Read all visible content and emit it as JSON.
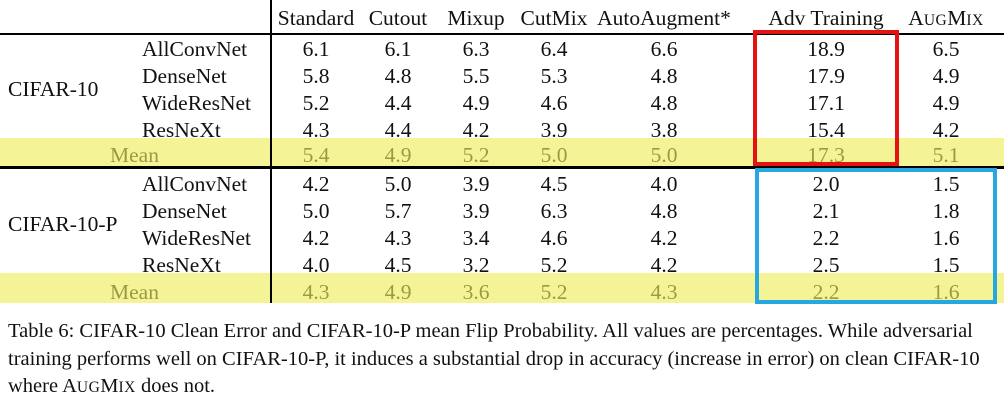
{
  "header": {
    "columns": [
      "Standard",
      "Cutout",
      "Mixup",
      "CutMix",
      "AutoAugment*",
      "Adv Training"
    ],
    "augmix": {
      "first": "A",
      "rest1": "UG",
      "mid": "M",
      "rest2": "IX"
    }
  },
  "groups": [
    {
      "label": "CIFAR-10",
      "rows": [
        {
          "model": "AllConvNet",
          "values": [
            "6.1",
            "6.1",
            "6.3",
            "6.4",
            "6.6",
            "18.9",
            "6.5"
          ]
        },
        {
          "model": "DenseNet",
          "values": [
            "5.8",
            "4.8",
            "5.5",
            "5.3",
            "4.8",
            "17.9",
            "4.9"
          ]
        },
        {
          "model": "WideResNet",
          "values": [
            "5.2",
            "4.4",
            "4.9",
            "4.6",
            "4.8",
            "17.1",
            "4.9"
          ]
        },
        {
          "model": "ResNeXt",
          "values": [
            "4.3",
            "4.4",
            "4.2",
            "3.9",
            "3.8",
            "15.4",
            "4.2"
          ]
        }
      ],
      "mean": {
        "label": "Mean",
        "values": [
          "5.4",
          "4.9",
          "5.2",
          "5.0",
          "5.0",
          "17.3",
          "5.1"
        ]
      }
    },
    {
      "label": "CIFAR-10-P",
      "rows": [
        {
          "model": "AllConvNet",
          "values": [
            "4.2",
            "5.0",
            "3.9",
            "4.5",
            "4.0",
            "2.0",
            "1.5"
          ]
        },
        {
          "model": "DenseNet",
          "values": [
            "5.0",
            "5.7",
            "3.9",
            "6.3",
            "4.8",
            "2.1",
            "1.8"
          ]
        },
        {
          "model": "WideResNet",
          "values": [
            "4.2",
            "4.3",
            "3.4",
            "4.6",
            "4.2",
            "2.2",
            "1.6"
          ]
        },
        {
          "model": "ResNeXt",
          "values": [
            "4.0",
            "4.5",
            "3.2",
            "5.2",
            "4.2",
            "2.5",
            "1.5"
          ]
        }
      ],
      "mean": {
        "label": "Mean",
        "values": [
          "4.3",
          "4.9",
          "3.6",
          "5.2",
          "4.3",
          "2.2",
          "1.6"
        ]
      }
    }
  ],
  "caption": {
    "part1": "Table 6: CIFAR-10 Clean Error and CIFAR-10-P mean Flip Probability. All values are percentages. While adversarial training performs well on CIFAR-10-P, it induces a substantial drop in accuracy (increase in error) on clean CIFAR-10 where ",
    "augmix": {
      "first": "A",
      "rest1": "UG",
      "mid": "M",
      "rest2": "IX"
    },
    "part2": " does not."
  },
  "colors": {
    "mean_highlight": "#f4f497",
    "mean_text": "#9a9a45",
    "red_box": "#e31313",
    "blue_box": "#27a7e0"
  }
}
